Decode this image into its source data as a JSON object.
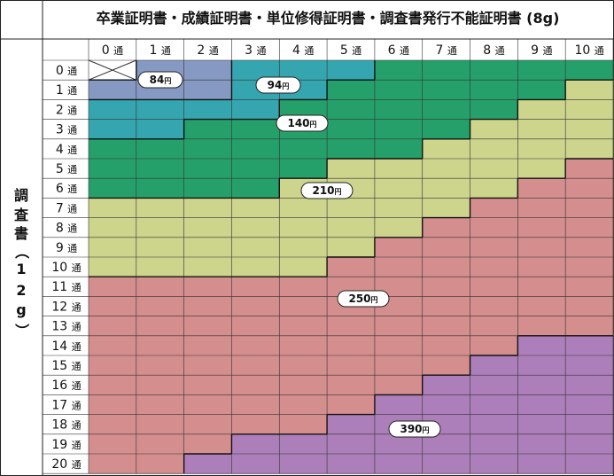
{
  "chart_data": {
    "type": "table",
    "title": "卒業証明書・成績証明書・単位修得証明書・調査書発行不能証明書 (8g)",
    "ylabel_chars": [
      "調",
      "査",
      "書",
      "（",
      "1",
      "2",
      "g",
      "）"
    ],
    "columns": [
      "0",
      "1",
      "2",
      "3",
      "4",
      "5",
      "6",
      "7",
      "8",
      "9",
      "10"
    ],
    "rows": [
      "0",
      "1",
      "2",
      "3",
      "4",
      "5",
      "6",
      "7",
      "8",
      "9",
      "10",
      "11",
      "12",
      "13",
      "14",
      "15",
      "16",
      "17",
      "18",
      "19",
      "20"
    ],
    "count_unit": "通",
    "price_unit": "円",
    "tiers": [
      {
        "price": "84",
        "color": "#8599c3"
      },
      {
        "price": "94",
        "color": "#35a6b0"
      },
      {
        "price": "140",
        "color": "#26a06a"
      },
      {
        "price": "210",
        "color": "#cdd48c"
      },
      {
        "price": "250",
        "color": "#d48e8e"
      },
      {
        "price": "390",
        "color": "#ad7fba"
      }
    ],
    "grid": [
      [
        -1,
        0,
        0,
        1,
        1,
        1,
        2,
        2,
        2,
        2,
        2
      ],
      [
        0,
        0,
        0,
        1,
        1,
        2,
        2,
        2,
        2,
        2,
        3
      ],
      [
        1,
        1,
        1,
        1,
        2,
        2,
        2,
        2,
        2,
        3,
        3
      ],
      [
        1,
        1,
        2,
        2,
        2,
        2,
        2,
        2,
        3,
        3,
        3
      ],
      [
        2,
        2,
        2,
        2,
        2,
        2,
        2,
        3,
        3,
        3,
        3
      ],
      [
        2,
        2,
        2,
        2,
        2,
        3,
        3,
        3,
        3,
        3,
        4
      ],
      [
        2,
        2,
        2,
        2,
        3,
        3,
        3,
        3,
        3,
        4,
        4
      ],
      [
        3,
        3,
        3,
        3,
        3,
        3,
        3,
        3,
        4,
        4,
        4
      ],
      [
        3,
        3,
        3,
        3,
        3,
        3,
        3,
        4,
        4,
        4,
        4
      ],
      [
        3,
        3,
        3,
        3,
        3,
        3,
        4,
        4,
        4,
        4,
        4
      ],
      [
        3,
        3,
        3,
        3,
        3,
        4,
        4,
        4,
        4,
        4,
        4
      ],
      [
        4,
        4,
        4,
        4,
        4,
        4,
        4,
        4,
        4,
        4,
        4
      ],
      [
        4,
        4,
        4,
        4,
        4,
        4,
        4,
        4,
        4,
        4,
        4
      ],
      [
        4,
        4,
        4,
        4,
        4,
        4,
        4,
        4,
        4,
        4,
        4
      ],
      [
        4,
        4,
        4,
        4,
        4,
        4,
        4,
        4,
        4,
        5,
        5
      ],
      [
        4,
        4,
        4,
        4,
        4,
        4,
        4,
        4,
        5,
        5,
        5
      ],
      [
        4,
        4,
        4,
        4,
        4,
        4,
        4,
        5,
        5,
        5,
        5
      ],
      [
        4,
        4,
        4,
        4,
        4,
        4,
        5,
        5,
        5,
        5,
        5
      ],
      [
        4,
        4,
        4,
        4,
        4,
        5,
        5,
        5,
        5,
        5,
        5
      ],
      [
        4,
        4,
        4,
        5,
        5,
        5,
        5,
        5,
        5,
        5,
        5
      ],
      [
        4,
        4,
        5,
        5,
        5,
        5,
        5,
        5,
        5,
        5,
        5
      ]
    ]
  }
}
